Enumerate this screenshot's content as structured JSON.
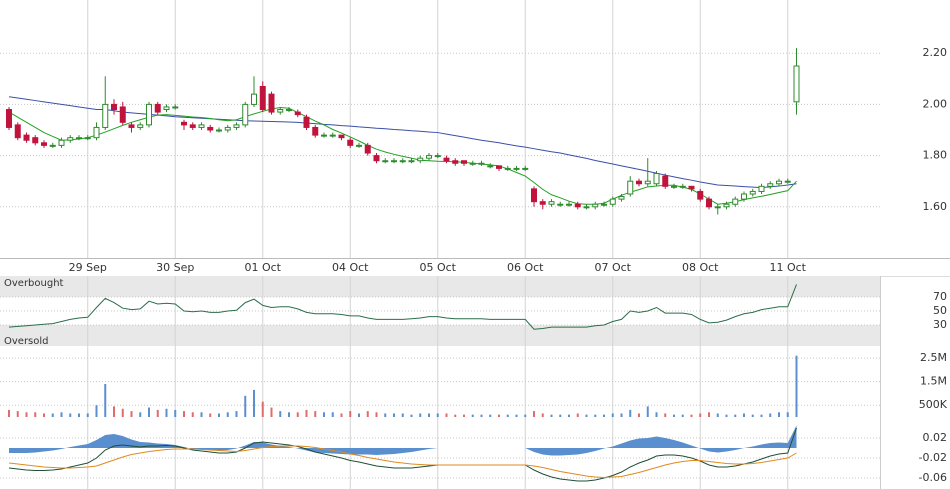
{
  "chart_data": [
    {
      "type": "candlestick",
      "categories": [
        null,
        null,
        null,
        null,
        null,
        null,
        null,
        null,
        null,
        "29 Sep",
        null,
        null,
        null,
        null,
        null,
        null,
        null,
        null,
        null,
        "30 Sep",
        null,
        null,
        null,
        null,
        null,
        null,
        null,
        null,
        null,
        "01 Oct",
        null,
        null,
        null,
        null,
        null,
        null,
        null,
        null,
        null,
        "04 Oct",
        null,
        null,
        null,
        null,
        null,
        null,
        null,
        null,
        null,
        "05 Oct",
        null,
        null,
        null,
        null,
        null,
        null,
        null,
        null,
        null,
        "06 Oct",
        null,
        null,
        null,
        null,
        null,
        null,
        null,
        null,
        null,
        "07 Oct",
        null,
        null,
        null,
        null,
        null,
        null,
        null,
        null,
        null,
        "08 Oct",
        null,
        null,
        null,
        null,
        null,
        null,
        null,
        null,
        null,
        "11 Oct",
        null
      ],
      "open": [
        1.98,
        1.92,
        1.88,
        1.87,
        1.85,
        1.84,
        1.84,
        1.86,
        1.87,
        1.87,
        1.87,
        1.91,
        2.0,
        1.99,
        1.92,
        1.91,
        1.92,
        2.0,
        1.98,
        1.99,
        1.93,
        1.92,
        1.91,
        1.91,
        1.9,
        1.9,
        1.91,
        1.92,
        2.0,
        2.07,
        2.04,
        1.97,
        1.98,
        1.97,
        1.95,
        1.91,
        1.88,
        1.88,
        1.88,
        1.86,
        1.84,
        1.84,
        1.8,
        1.78,
        1.78,
        1.78,
        1.78,
        1.78,
        1.79,
        1.8,
        1.79,
        1.78,
        1.78,
        1.77,
        1.77,
        1.76,
        1.76,
        1.75,
        1.75,
        1.75,
        1.67,
        1.62,
        1.61,
        1.61,
        1.61,
        1.61,
        1.6,
        1.6,
        1.61,
        1.61,
        1.63,
        1.65,
        1.7,
        1.69,
        1.69,
        1.72,
        1.68,
        1.68,
        1.68,
        1.66,
        1.63,
        1.6,
        1.6,
        1.61,
        1.63,
        1.65,
        1.66,
        1.68,
        1.69,
        1.7,
        2.01
      ],
      "high": [
        1.99,
        1.93,
        1.89,
        1.88,
        1.86,
        1.85,
        1.87,
        1.88,
        1.88,
        1.88,
        1.93,
        2.11,
        2.02,
        2.01,
        1.93,
        1.93,
        2.01,
        2.01,
        2.0,
        2.0,
        1.94,
        1.93,
        1.93,
        1.92,
        1.91,
        1.92,
        1.93,
        2.01,
        2.11,
        2.09,
        2.05,
        1.99,
        1.99,
        1.98,
        1.96,
        1.92,
        1.89,
        1.89,
        1.88,
        1.87,
        1.85,
        1.85,
        1.81,
        1.79,
        1.79,
        1.79,
        1.79,
        1.8,
        1.81,
        1.81,
        1.8,
        1.79,
        1.78,
        1.78,
        1.78,
        1.77,
        1.76,
        1.76,
        1.76,
        1.76,
        1.68,
        1.63,
        1.63,
        1.62,
        1.62,
        1.62,
        1.61,
        1.62,
        1.62,
        1.64,
        1.65,
        1.72,
        1.71,
        1.79,
        1.74,
        1.73,
        1.69,
        1.69,
        1.68,
        1.67,
        1.64,
        1.61,
        1.62,
        1.64,
        1.66,
        1.67,
        1.69,
        1.7,
        1.71,
        1.71,
        2.22
      ],
      "low": [
        1.9,
        1.86,
        1.85,
        1.84,
        1.83,
        1.83,
        1.83,
        1.85,
        1.86,
        1.86,
        1.86,
        1.9,
        1.96,
        1.92,
        1.89,
        1.9,
        1.91,
        1.96,
        1.97,
        1.98,
        1.9,
        1.9,
        1.9,
        1.89,
        1.89,
        1.89,
        1.9,
        1.91,
        1.99,
        1.97,
        1.96,
        1.96,
        1.97,
        1.95,
        1.9,
        1.87,
        1.87,
        1.87,
        1.86,
        1.83,
        1.83,
        1.8,
        1.77,
        1.77,
        1.77,
        1.77,
        1.77,
        1.77,
        1.78,
        1.79,
        1.77,
        1.76,
        1.76,
        1.76,
        1.76,
        1.75,
        1.74,
        1.74,
        1.74,
        1.74,
        1.6,
        1.59,
        1.6,
        1.6,
        1.6,
        1.59,
        1.59,
        1.59,
        1.6,
        1.6,
        1.62,
        1.64,
        1.68,
        1.68,
        1.68,
        1.67,
        1.67,
        1.67,
        1.66,
        1.62,
        1.59,
        1.57,
        1.59,
        1.6,
        1.62,
        1.64,
        1.65,
        1.67,
        1.68,
        1.69,
        1.96
      ],
      "close": [
        1.91,
        1.87,
        1.86,
        1.85,
        1.84,
        1.84,
        1.86,
        1.87,
        1.87,
        1.87,
        1.91,
        2.0,
        1.98,
        1.93,
        1.91,
        1.92,
        2.0,
        1.97,
        1.99,
        1.99,
        1.92,
        1.91,
        1.92,
        1.9,
        1.9,
        1.91,
        1.92,
        2.0,
        2.04,
        1.98,
        1.97,
        1.98,
        1.98,
        1.96,
        1.91,
        1.88,
        1.88,
        1.88,
        1.87,
        1.84,
        1.84,
        1.81,
        1.78,
        1.78,
        1.78,
        1.78,
        1.78,
        1.79,
        1.8,
        1.8,
        1.78,
        1.77,
        1.77,
        1.77,
        1.77,
        1.76,
        1.75,
        1.75,
        1.75,
        1.75,
        1.62,
        1.61,
        1.62,
        1.61,
        1.61,
        1.6,
        1.6,
        1.61,
        1.61,
        1.63,
        1.64,
        1.7,
        1.69,
        1.7,
        1.73,
        1.68,
        1.68,
        1.68,
        1.67,
        1.63,
        1.6,
        1.6,
        1.61,
        1.63,
        1.65,
        1.66,
        1.68,
        1.69,
        1.7,
        1.7,
        2.15
      ],
      "up_color": "#2e8b2e",
      "down_color": "#c0143c",
      "series": [
        {
          "color": "#3b4fa8",
          "values": [
            2.03,
            2.025,
            2.02,
            2.015,
            2.01,
            2.005,
            2.0,
            1.995,
            1.99,
            1.985,
            1.98,
            1.98,
            1.975,
            1.97,
            1.967,
            1.964,
            1.961,
            1.958,
            1.955,
            1.952,
            1.95,
            1.948,
            1.946,
            1.944,
            1.942,
            1.94,
            1.938,
            1.936,
            1.935,
            1.934,
            1.933,
            1.932,
            1.931,
            1.93,
            1.927,
            1.925,
            1.922,
            1.92,
            1.917,
            1.915,
            1.912,
            1.91,
            1.907,
            1.905,
            1.902,
            1.9,
            1.897,
            1.895,
            1.892,
            1.89,
            1.884,
            1.878,
            1.872,
            1.866,
            1.86,
            1.855,
            1.85,
            1.844,
            1.838,
            1.833,
            1.827,
            1.821,
            1.815,
            1.81,
            1.803,
            1.796,
            1.789,
            1.781,
            1.774,
            1.767,
            1.76,
            1.753,
            1.746,
            1.739,
            1.731,
            1.724,
            1.717,
            1.71,
            1.704,
            1.697,
            1.691,
            1.685,
            1.683,
            1.681,
            1.679,
            1.677,
            1.675,
            1.678,
            1.681,
            1.685,
            1.69
          ]
        },
        {
          "color": "#22a022",
          "values": [
            1.97,
            1.95,
            1.93,
            1.91,
            1.89,
            1.875,
            1.86,
            1.862,
            1.865,
            1.87,
            1.88,
            1.892,
            1.905,
            1.918,
            1.93,
            1.94,
            1.95,
            1.958,
            1.96,
            1.957,
            1.954,
            1.951,
            1.949,
            1.945,
            1.94,
            1.936,
            1.94,
            1.952,
            1.963,
            1.973,
            1.982,
            1.988,
            1.985,
            1.968,
            1.952,
            1.935,
            1.92,
            1.902,
            1.888,
            1.873,
            1.857,
            1.84,
            1.825,
            1.814,
            1.805,
            1.797,
            1.79,
            1.782,
            1.78,
            1.778,
            1.777,
            1.776,
            1.774,
            1.77,
            1.767,
            1.764,
            1.76,
            1.748,
            1.734,
            1.72,
            1.695,
            1.668,
            1.647,
            1.635,
            1.622,
            1.612,
            1.61,
            1.61,
            1.614,
            1.63,
            1.645,
            1.657,
            1.667,
            1.678,
            1.681,
            1.684,
            1.684,
            1.677,
            1.668,
            1.65,
            1.63,
            1.61,
            1.614,
            1.62,
            1.628,
            1.635,
            1.641,
            1.648,
            1.656,
            1.663,
            1.7
          ]
        }
      ],
      "ylim": [
        1.4,
        2.4
      ],
      "yticks": [
        {
          "value": 1.6,
          "label": "1.60"
        },
        {
          "value": 1.8,
          "label": "1.80"
        },
        {
          "value": 2.0,
          "label": "2.00"
        },
        {
          "value": 2.2,
          "label": "2.20"
        }
      ],
      "grid": true
    },
    {
      "type": "line",
      "upper_label": "Overbought",
      "lower_label": "Oversold",
      "color": "#2a6e4a",
      "values": [
        27,
        28,
        29,
        30,
        31,
        32,
        35,
        38,
        40,
        41,
        55,
        68,
        62,
        54,
        52,
        53,
        64,
        60,
        61,
        60,
        50,
        49,
        50,
        48,
        48,
        50,
        51,
        62,
        67,
        58,
        55,
        56,
        56,
        53,
        48,
        46,
        46,
        46,
        45,
        43,
        43,
        40,
        38,
        38,
        38,
        38,
        39,
        40,
        42,
        42,
        40,
        39,
        39,
        39,
        39,
        38,
        38,
        38,
        38,
        38,
        24,
        25,
        27,
        27,
        27,
        27,
        27,
        29,
        30,
        35,
        38,
        50,
        48,
        50,
        55,
        47,
        47,
        47,
        45,
        38,
        33,
        34,
        37,
        42,
        46,
        48,
        52,
        54,
        56,
        56,
        88
      ],
      "ylim": [
        0,
        100
      ],
      "yticks": [
        30,
        50,
        70
      ],
      "grid": true
    },
    {
      "type": "bar",
      "up_color": "#5b8fd0",
      "down_color": "#e06b6b",
      "values": [
        300000,
        250000,
        200000,
        200000,
        150000,
        150000,
        200000,
        150000,
        150000,
        150000,
        500000,
        1400000,
        450000,
        350000,
        250000,
        200000,
        400000,
        300000,
        350000,
        300000,
        250000,
        200000,
        200000,
        150000,
        150000,
        200000,
        250000,
        900000,
        1150000,
        650000,
        400000,
        250000,
        200000,
        200000,
        300000,
        250000,
        200000,
        200000,
        150000,
        250000,
        150000,
        250000,
        200000,
        150000,
        150000,
        150000,
        100000,
        150000,
        150000,
        150000,
        150000,
        100000,
        100000,
        100000,
        100000,
        100000,
        100000,
        100000,
        100000,
        100000,
        250000,
        150000,
        100000,
        100000,
        100000,
        150000,
        100000,
        100000,
        100000,
        150000,
        150000,
        300000,
        150000,
        450000,
        200000,
        150000,
        100000,
        100000,
        100000,
        150000,
        200000,
        150000,
        100000,
        100000,
        150000,
        100000,
        100000,
        150000,
        200000,
        200000,
        2600000
      ],
      "ylim": [
        0,
        2800000
      ],
      "yticks": [
        {
          "value": 500000,
          "label": "500K"
        },
        {
          "value": 1500000,
          "label": "1.5M"
        },
        {
          "value": 2500000,
          "label": "2.5M"
        }
      ],
      "grid": true
    },
    {
      "type": "macd",
      "histogram": {
        "color": "#5a8fcf",
        "values": [
          -0.01,
          -0.01,
          -0.01,
          -0.009,
          -0.007,
          -0.005,
          -0.002,
          0.002,
          0.005,
          0.008,
          0.016,
          0.026,
          0.028,
          0.024,
          0.017,
          0.012,
          0.011,
          0.009,
          0.008,
          0.006,
          0.002,
          -0.002,
          -0.003,
          -0.004,
          -0.005,
          -0.004,
          -0.001,
          0.005,
          0.012,
          0.011,
          0.007,
          0.004,
          0.002,
          -0.001,
          -0.005,
          -0.009,
          -0.01,
          -0.011,
          -0.012,
          -0.013,
          -0.013,
          -0.013,
          -0.014,
          -0.013,
          -0.012,
          -0.01,
          -0.008,
          -0.005,
          -0.002,
          0,
          0,
          0,
          0,
          0,
          0,
          0,
          0,
          0,
          0,
          0,
          -0.008,
          -0.013,
          -0.015,
          -0.015,
          -0.014,
          -0.013,
          -0.01,
          -0.006,
          -0.001,
          0.003,
          0.009,
          0.015,
          0.019,
          0.02,
          0.023,
          0.02,
          0.016,
          0.011,
          0.005,
          -0.001,
          -0.007,
          -0.009,
          -0.007,
          -0.004,
          0,
          0.003,
          0.007,
          0.01,
          0.011,
          0.01,
          0.045
        ]
      },
      "series": [
        {
          "color": "#1f4f35",
          "values": [
            -0.04,
            -0.042,
            -0.044,
            -0.045,
            -0.045,
            -0.044,
            -0.042,
            -0.038,
            -0.034,
            -0.03,
            -0.02,
            -0.004,
            0.004,
            0.006,
            0.004,
            0.002,
            0.004,
            0.004,
            0.005,
            0.004,
            0.0,
            -0.004,
            -0.006,
            -0.008,
            -0.01,
            -0.01,
            -0.008,
            0.0,
            0.01,
            0.012,
            0.01,
            0.008,
            0.006,
            0.003,
            -0.002,
            -0.008,
            -0.012,
            -0.016,
            -0.02,
            -0.025,
            -0.028,
            -0.032,
            -0.036,
            -0.038,
            -0.04,
            -0.04,
            -0.04,
            -0.038,
            -0.036,
            -0.034,
            -0.034,
            -0.034,
            -0.034,
            -0.034,
            -0.034,
            -0.034,
            -0.034,
            -0.034,
            -0.034,
            -0.034,
            -0.044,
            -0.052,
            -0.058,
            -0.062,
            -0.064,
            -0.066,
            -0.066,
            -0.064,
            -0.06,
            -0.055,
            -0.048,
            -0.038,
            -0.03,
            -0.024,
            -0.016,
            -0.014,
            -0.014,
            -0.016,
            -0.02,
            -0.026,
            -0.034,
            -0.038,
            -0.038,
            -0.036,
            -0.032,
            -0.028,
            -0.022,
            -0.016,
            -0.012,
            -0.01,
            0.04
          ]
        },
        {
          "color": "#e08a1e",
          "values": [
            -0.03,
            -0.032,
            -0.034,
            -0.036,
            -0.038,
            -0.039,
            -0.04,
            -0.04,
            -0.039,
            -0.038,
            -0.036,
            -0.03,
            -0.024,
            -0.018,
            -0.013,
            -0.01,
            -0.007,
            -0.005,
            -0.003,
            -0.002,
            -0.002,
            -0.002,
            -0.003,
            -0.004,
            -0.005,
            -0.006,
            -0.007,
            -0.005,
            -0.002,
            0.001,
            0.003,
            0.004,
            0.004,
            0.004,
            0.003,
            0.001,
            -0.002,
            -0.005,
            -0.008,
            -0.012,
            -0.015,
            -0.019,
            -0.022,
            -0.025,
            -0.028,
            -0.03,
            -0.032,
            -0.033,
            -0.034,
            -0.034,
            -0.034,
            -0.034,
            -0.034,
            -0.034,
            -0.034,
            -0.034,
            -0.034,
            -0.034,
            -0.034,
            -0.034,
            -0.036,
            -0.039,
            -0.043,
            -0.047,
            -0.05,
            -0.053,
            -0.056,
            -0.058,
            -0.059,
            -0.058,
            -0.057,
            -0.053,
            -0.049,
            -0.044,
            -0.039,
            -0.034,
            -0.03,
            -0.027,
            -0.025,
            -0.025,
            -0.027,
            -0.029,
            -0.031,
            -0.032,
            -0.032,
            -0.031,
            -0.029,
            -0.026,
            -0.023,
            -0.02,
            -0.01
          ]
        }
      ],
      "ylim": [
        -0.08,
        0.05
      ],
      "yticks": [
        -0.06,
        -0.02,
        0.02
      ],
      "grid": true
    }
  ]
}
